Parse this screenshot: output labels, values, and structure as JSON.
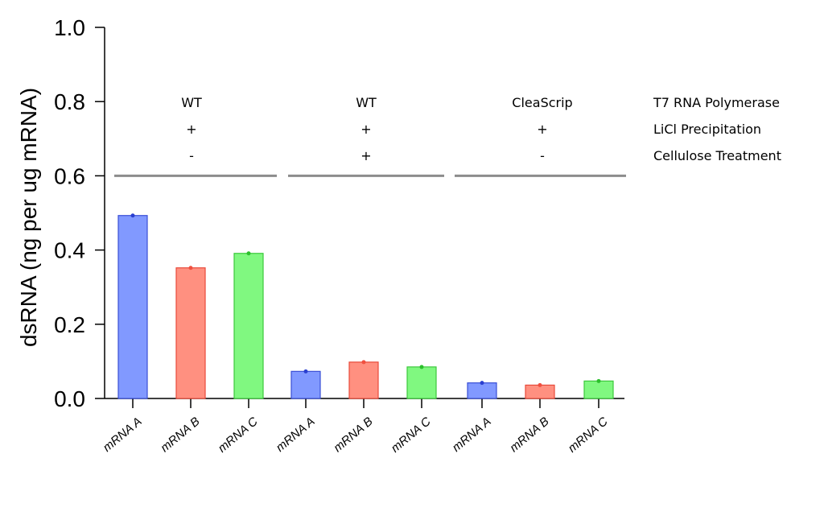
{
  "chart_data": {
    "type": "bar",
    "categories": [
      "mRNA A",
      "mRNA B",
      "mRNA C",
      "mRNA A",
      "mRNA B",
      "mRNA C",
      "mRNA A",
      "mRNA B",
      "mRNA C"
    ],
    "values": [
      0.493,
      0.352,
      0.391,
      0.073,
      0.098,
      0.085,
      0.042,
      0.036,
      0.047
    ],
    "bar_colors": [
      "blue",
      "red",
      "green",
      "blue",
      "red",
      "green",
      "blue",
      "red",
      "green"
    ],
    "colors": {
      "blue": {
        "fill": "#8199ff",
        "stroke": "#3a4fd6",
        "dot": "#2a3fd0"
      },
      "red": {
        "fill": "#ff9080",
        "stroke": "#e84a3a",
        "dot": "#f05040"
      },
      "green": {
        "fill": "#80f880",
        "stroke": "#3cc83c",
        "dot": "#2cc02c"
      },
      "group_line": "#8c8c8c"
    },
    "title": "",
    "xlabel": "",
    "ylabel": "dsRNA (ng per ug mRNA)",
    "ylim": [
      0,
      1.0
    ],
    "yticks": [
      "0.0",
      "0.2",
      "0.4",
      "0.6",
      "0.8",
      "1.0"
    ],
    "ytick_values": [
      0,
      0.2,
      0.4,
      0.6,
      0.8,
      1.0
    ],
    "grid": false,
    "group_line_value": 0.6,
    "condition_rows": [
      {
        "label": "T7 RNA Polymerase",
        "values": [
          "WT",
          "WT",
          "CleaScrip"
        ]
      },
      {
        "label": "LiCl Precipitation",
        "values": [
          "+",
          "+",
          "+"
        ]
      },
      {
        "label": "Cellulose Treatment",
        "values": [
          "-",
          "+",
          "-"
        ]
      }
    ]
  }
}
